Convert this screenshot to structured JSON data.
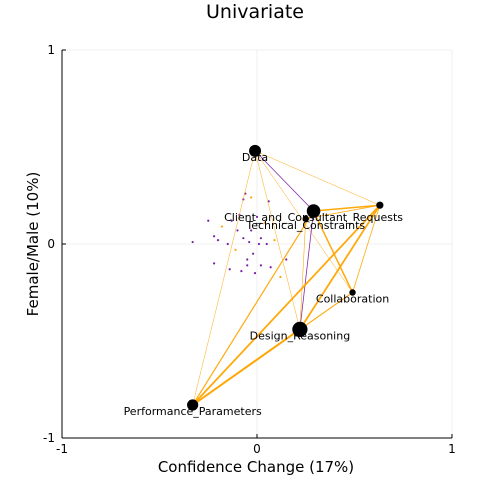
{
  "chart_data": {
    "type": "scatter",
    "title": "Univariate",
    "xlabel": "Confidence Change (17%)",
    "ylabel": "Female/Male (10%)",
    "xlim": [
      -1,
      1
    ],
    "ylim": [
      -1,
      1
    ],
    "xticks": [
      {
        "value": -1,
        "label": "-1"
      },
      {
        "value": 0,
        "label": "0"
      },
      {
        "value": 1,
        "label": "1"
      }
    ],
    "yticks": [
      {
        "value": -1,
        "label": "-1"
      },
      {
        "value": 0,
        "label": "0"
      },
      {
        "value": 1,
        "label": "1"
      }
    ],
    "grid": true,
    "legend": "none",
    "colors": {
      "edge_orange": "#ffa500",
      "edge_purple": "#7b1fa2",
      "node": "#000000",
      "grid": "#ececec",
      "axis": "#000000"
    },
    "nodes": [
      {
        "id": "data",
        "label": "Data",
        "x": -0.01,
        "y": 0.48,
        "size": 1.0
      },
      {
        "id": "client",
        "label": "Client_and_Consultant_Requests",
        "x": 0.29,
        "y": 0.17,
        "size": 1.2
      },
      {
        "id": "tech",
        "label": "Technical_Constraints",
        "x": 0.25,
        "y": 0.13,
        "size": 0.3
      },
      {
        "id": "right",
        "label": "",
        "x": 0.63,
        "y": 0.2,
        "size": 0.4
      },
      {
        "id": "collab",
        "label": "Collaboration",
        "x": 0.49,
        "y": -0.25,
        "size": 0.3
      },
      {
        "id": "design",
        "label": "Design_Reasoning",
        "x": 0.22,
        "y": -0.44,
        "size": 1.4
      },
      {
        "id": "perf",
        "label": "Performance_Parameters",
        "x": -0.33,
        "y": -0.83,
        "size": 0.9
      }
    ],
    "edges": [
      {
        "from": "data",
        "to": "right",
        "color": "orange",
        "weight": 0.5
      },
      {
        "from": "data",
        "to": "client",
        "color": "purple",
        "weight": 0.8
      },
      {
        "from": "data",
        "to": "perf",
        "color": "orange",
        "weight": 0.5
      },
      {
        "from": "data",
        "to": "design",
        "color": "orange",
        "weight": 0.5
      },
      {
        "from": "data",
        "to": "collab",
        "color": "orange",
        "weight": 0.5
      },
      {
        "from": "client",
        "to": "right",
        "color": "orange",
        "weight": 1.5
      },
      {
        "from": "client",
        "to": "design",
        "color": "purple",
        "weight": 0.8
      },
      {
        "from": "client",
        "to": "perf",
        "color": "orange",
        "weight": 1.2
      },
      {
        "from": "client",
        "to": "collab",
        "color": "orange",
        "weight": 1.5
      },
      {
        "from": "tech",
        "to": "right",
        "color": "orange",
        "weight": 0.8
      },
      {
        "from": "tech",
        "to": "design",
        "color": "orange",
        "weight": 0.6
      },
      {
        "from": "right",
        "to": "perf",
        "color": "orange",
        "weight": 1.8
      },
      {
        "from": "right",
        "to": "design",
        "color": "orange",
        "weight": 1.8
      },
      {
        "from": "right",
        "to": "collab",
        "color": "orange",
        "weight": 0.8
      },
      {
        "from": "design",
        "to": "perf",
        "color": "orange",
        "weight": 2.0
      },
      {
        "from": "design",
        "to": "collab",
        "color": "orange",
        "weight": 0.8
      },
      {
        "from": "collab",
        "to": "perf",
        "color": "orange",
        "weight": 1.0
      }
    ],
    "points": [
      {
        "x": -0.33,
        "y": 0.01,
        "color": "purple"
      },
      {
        "x": -0.25,
        "y": 0.12,
        "color": "purple"
      },
      {
        "x": -0.22,
        "y": 0.04,
        "color": "purple"
      },
      {
        "x": -0.2,
        "y": 0.02,
        "color": "purple"
      },
      {
        "x": -0.22,
        "y": -0.1,
        "color": "purple"
      },
      {
        "x": -0.18,
        "y": 0.09,
        "color": "orange"
      },
      {
        "x": -0.15,
        "y": 0.0,
        "color": "purple"
      },
      {
        "x": -0.14,
        "y": -0.13,
        "color": "purple"
      },
      {
        "x": -0.13,
        "y": 0.12,
        "color": "purple"
      },
      {
        "x": -0.11,
        "y": -0.03,
        "color": "orange"
      },
      {
        "x": -0.1,
        "y": 0.07,
        "color": "purple"
      },
      {
        "x": -0.09,
        "y": 0.15,
        "color": "purple"
      },
      {
        "x": -0.07,
        "y": 0.23,
        "color": "purple"
      },
      {
        "x": -0.06,
        "y": 0.26,
        "color": "purple"
      },
      {
        "x": -0.07,
        "y": 0.03,
        "color": "purple"
      },
      {
        "x": -0.05,
        "y": -0.08,
        "color": "purple"
      },
      {
        "x": -0.08,
        "y": -0.14,
        "color": "purple"
      },
      {
        "x": -0.04,
        "y": 0.01,
        "color": "purple"
      },
      {
        "x": -0.03,
        "y": 0.07,
        "color": "purple"
      },
      {
        "x": -0.02,
        "y": -0.05,
        "color": "purple"
      },
      {
        "x": -0.01,
        "y": -0.15,
        "color": "purple"
      },
      {
        "x": 0.0,
        "y": 0.14,
        "color": "purple"
      },
      {
        "x": 0.02,
        "y": 0.03,
        "color": "purple"
      },
      {
        "x": 0.02,
        "y": -0.11,
        "color": "purple"
      },
      {
        "x": 0.04,
        "y": 0.11,
        "color": "orange"
      },
      {
        "x": 0.05,
        "y": 0.0,
        "color": "purple"
      },
      {
        "x": 0.06,
        "y": 0.22,
        "color": "purple"
      },
      {
        "x": -0.03,
        "y": 0.24,
        "color": "orange"
      },
      {
        "x": 0.07,
        "y": -0.12,
        "color": "purple"
      },
      {
        "x": 0.09,
        "y": 0.02,
        "color": "orange"
      },
      {
        "x": 0.12,
        "y": -0.17,
        "color": "orange"
      },
      {
        "x": 0.15,
        "y": -0.08,
        "color": "purple"
      },
      {
        "x": -0.05,
        "y": -0.11,
        "color": "purple"
      },
      {
        "x": 0.01,
        "y": 0.0,
        "color": "purple"
      }
    ]
  }
}
